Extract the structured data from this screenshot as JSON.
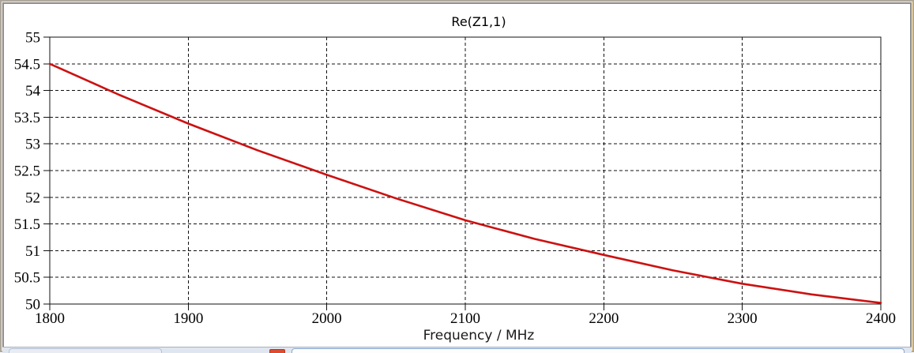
{
  "window": {
    "frame_tan": "#c9ac72",
    "frame_gray": "#8f8f8f",
    "canvas_bg": "#ffffff"
  },
  "chart_data": {
    "type": "line",
    "title": "Re(Z1,1)",
    "xlabel": "Frequency / MHz",
    "ylabel": "",
    "xlim": [
      1800,
      2400
    ],
    "ylim": [
      50,
      55
    ],
    "xticks": [
      1800,
      1900,
      2000,
      2100,
      2200,
      2300,
      2400
    ],
    "yticks": [
      50,
      50.5,
      51,
      51.5,
      52,
      52.5,
      53,
      53.5,
      54,
      54.5,
      55
    ],
    "grid": true,
    "grid_style": "dashed",
    "legend_position": "none",
    "series": [
      {
        "name": "Re(Z1,1)",
        "color": "#cc1111",
        "x": [
          1800,
          1850,
          1900,
          1950,
          2000,
          2050,
          2100,
          2150,
          2200,
          2250,
          2300,
          2350,
          2400
        ],
        "y": [
          54.5,
          53.92,
          53.38,
          52.88,
          52.42,
          51.98,
          51.57,
          51.22,
          50.92,
          50.63,
          50.38,
          50.18,
          50.02
        ]
      }
    ]
  },
  "bottom_bar": {
    "strip_bg": "#dfe6ef",
    "tab_fill": "#fdfdfe",
    "tab_border": "#86a7d3",
    "red_icon_color": "#dc4c31"
  }
}
